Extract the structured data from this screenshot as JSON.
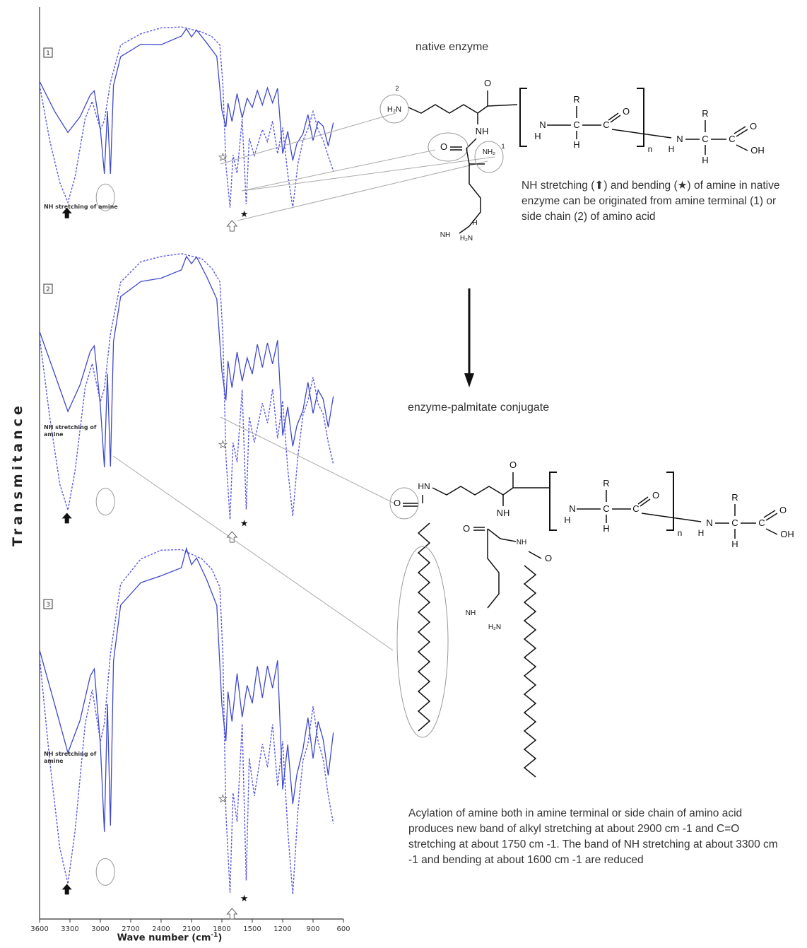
{
  "chart_data": {
    "type": "line",
    "ylabel": "Transmitance",
    "xlabel": "Wave number (cm",
    "xlabel_sup": "-1",
    "xlabel_suffix": ")",
    "xlim": [
      3600,
      600
    ],
    "xticks": [
      3600,
      3300,
      3000,
      2700,
      2400,
      2100,
      1800,
      1500,
      1200,
      900,
      600
    ],
    "grid": false,
    "legend": "none",
    "series_styles": {
      "solid": "#3f48cc",
      "dashed": "#5a5ae6"
    },
    "panels": [
      {
        "tag": "1",
        "solid_label": "",
        "dashed_label": ""
      },
      {
        "tag": "2",
        "solid_label": "",
        "dashed_label": ""
      },
      {
        "tag": "3",
        "solid_label": "",
        "dashed_label": ""
      }
    ],
    "markers": {
      "nh_stretch_x": 3330,
      "star_closed_x": 1580,
      "star_open_x": 1790,
      "arrow_open_x": 1700,
      "circle_x": 2950
    },
    "annotation": "NH stretching of amine"
  },
  "labels": {
    "native": "native enzyme",
    "conjugate": "enzyme-palmitate conjugate",
    "native_note": "NH stretching (⬆) and bending (★) of amine in native enzyme can be originated from amine terminal (1) or side chain (2) of amino acid",
    "conj_note": "Acylation of amine both in amine terminal or side chain of amino acid produces new band of alkyl stretching at about 2900 cm -1 and C=O stretching at about 1750 cm -1. The band of NH stretching at about 3300 cm -1 and bending at about 1600 cm -1 are reduced"
  }
}
